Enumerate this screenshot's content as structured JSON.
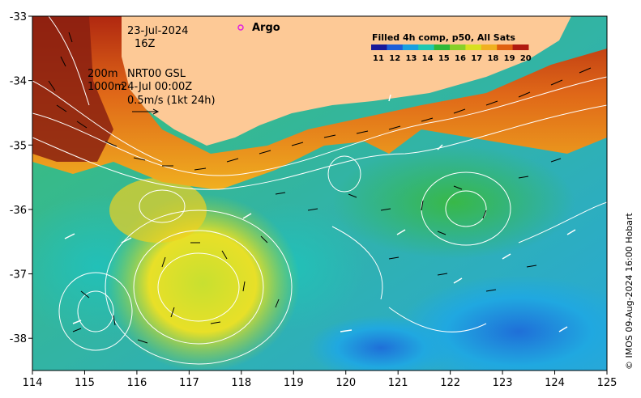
{
  "annotations": {
    "date": "23-Jul-2024",
    "hour": "16Z",
    "depth_200": "200m",
    "depth_1000": "1000m",
    "product": "NRT00 GSL",
    "current_time": "24-Jul 00:00Z",
    "scale_arrow": "0.5m/s (1kt 24h)",
    "argo_label": "Argo"
  },
  "legend": {
    "title": "Filled 4h comp, p50, All Sats",
    "ticks": [
      "11",
      "12",
      "13",
      "14",
      "15",
      "16",
      "17",
      "18",
      "19",
      "20"
    ],
    "colors": [
      "#1a1a9a",
      "#1f5fd8",
      "#1aa0e0",
      "#20c8b0",
      "#30b838",
      "#88d028",
      "#d8e020",
      "#f0b020",
      "#e06010",
      "#b01a10"
    ]
  },
  "credit": "© IMOS 09-Aug-2024 16:00 Hobart",
  "colors": {
    "land": "#fdc996",
    "argo_marker": "#e020e0",
    "contour": "#ffffff",
    "vector": "#000000"
  },
  "chart_data": {
    "type": "heatmap",
    "xlim": [
      114,
      125
    ],
    "ylim": [
      -38.5,
      -33
    ],
    "x_ticks": [
      "114",
      "115",
      "116",
      "117",
      "118",
      "119",
      "120",
      "121",
      "122",
      "123",
      "124",
      "125"
    ],
    "y_ticks": [
      "-33",
      "-34",
      "-35",
      "-36",
      "-37",
      "-38"
    ],
    "color_scale": [
      11,
      20
    ]
  }
}
